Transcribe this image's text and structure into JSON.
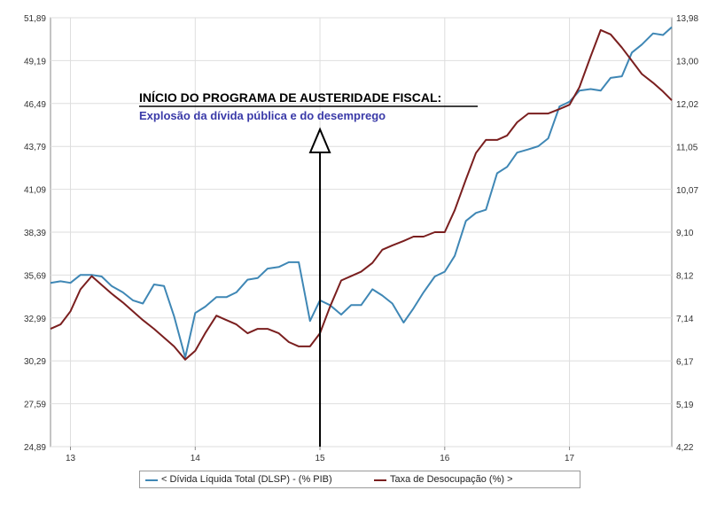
{
  "chart_data": {
    "type": "line",
    "title": "",
    "xlabel": "",
    "ylabel": "",
    "x_tick_labels": [
      "13",
      "14",
      "15",
      "16",
      "17"
    ],
    "x_ticks": [
      13,
      14,
      15,
      16,
      17
    ],
    "xlim": [
      12.84,
      17.82
    ],
    "y_left": {
      "ylim": [
        24.89,
        51.89
      ],
      "tick_labels": [
        "51,89",
        "49,19",
        "46,49",
        "43,79",
        "41,09",
        "38,39",
        "35,69",
        "32,99",
        "30,29",
        "27,59",
        "24,89"
      ],
      "ticks": [
        51.89,
        49.19,
        46.49,
        43.79,
        41.09,
        38.39,
        35.69,
        32.99,
        30.29,
        27.59,
        24.89
      ]
    },
    "y_right": {
      "ylim": [
        4.22,
        13.98
      ],
      "tick_labels": [
        "13,98",
        "13,00",
        "12,02",
        "11,05",
        "10,07",
        "9,10",
        "8,12",
        "7,14",
        "6,17",
        "5,19",
        "4,22"
      ],
      "ticks": [
        13.98,
        13.0,
        12.02,
        11.05,
        10.07,
        9.1,
        8.12,
        7.14,
        6.17,
        5.19,
        4.22
      ]
    },
    "grid": true,
    "legend_position": "bottom",
    "series": [
      {
        "name": "< Dívida Líquida Total (DLSP) - (% PIB)",
        "axis": "left",
        "color": "#3f87b5",
        "x": [
          12.84,
          12.92,
          13.0,
          13.08,
          13.17,
          13.25,
          13.33,
          13.42,
          13.5,
          13.58,
          13.67,
          13.75,
          13.83,
          13.92,
          14.0,
          14.08,
          14.17,
          14.25,
          14.33,
          14.42,
          14.5,
          14.58,
          14.67,
          14.75,
          14.83,
          14.92,
          15.0,
          15.08,
          15.17,
          15.25,
          15.33,
          15.42,
          15.5,
          15.58,
          15.67,
          15.75,
          15.83,
          15.92,
          16.0,
          16.08,
          16.17,
          16.25,
          16.33,
          16.42,
          16.5,
          16.58,
          16.67,
          16.75,
          16.83,
          16.92,
          17.0,
          17.08,
          17.17,
          17.25,
          17.33,
          17.42,
          17.5,
          17.58,
          17.67,
          17.75,
          17.82
        ],
        "values": [
          35.2,
          35.3,
          35.2,
          35.7,
          35.7,
          35.6,
          35.0,
          34.6,
          34.1,
          33.9,
          35.1,
          35.0,
          33.1,
          30.5,
          33.3,
          33.7,
          34.3,
          34.3,
          34.6,
          35.4,
          35.5,
          36.1,
          36.2,
          36.5,
          36.5,
          32.8,
          34.1,
          33.8,
          33.2,
          33.8,
          33.8,
          34.8,
          34.4,
          33.9,
          32.7,
          33.6,
          34.6,
          35.6,
          35.9,
          36.9,
          39.1,
          39.6,
          39.8,
          42.1,
          42.5,
          43.4,
          43.6,
          43.8,
          44.3,
          46.3,
          46.6,
          47.3,
          47.4,
          47.3,
          48.1,
          48.2,
          49.7,
          50.2,
          50.9,
          50.8,
          51.3
        ]
      },
      {
        "name": "Taxa de Desocupação (%) >",
        "axis": "right",
        "color": "#7a1f1f",
        "x": [
          12.84,
          12.92,
          13.0,
          13.08,
          13.17,
          13.25,
          13.33,
          13.42,
          13.5,
          13.58,
          13.67,
          13.75,
          13.83,
          13.92,
          14.0,
          14.08,
          14.17,
          14.25,
          14.33,
          14.42,
          14.5,
          14.58,
          14.67,
          14.75,
          14.83,
          14.92,
          15.0,
          15.08,
          15.17,
          15.25,
          15.33,
          15.42,
          15.5,
          15.58,
          15.67,
          15.75,
          15.83,
          15.92,
          16.0,
          16.08,
          16.17,
          16.25,
          16.33,
          16.42,
          16.5,
          16.58,
          16.67,
          16.75,
          16.83,
          16.92,
          17.0,
          17.08,
          17.17,
          17.25,
          17.33,
          17.42,
          17.5,
          17.58,
          17.67,
          17.75,
          17.82
        ],
        "values": [
          6.9,
          7.0,
          7.3,
          7.8,
          8.1,
          7.9,
          7.7,
          7.5,
          7.3,
          7.1,
          6.9,
          6.7,
          6.5,
          6.2,
          6.4,
          6.8,
          7.2,
          7.1,
          7.0,
          6.8,
          6.9,
          6.9,
          6.8,
          6.6,
          6.5,
          6.5,
          6.8,
          7.4,
          8.0,
          8.1,
          8.2,
          8.4,
          8.7,
          8.8,
          8.9,
          9.0,
          9.0,
          9.1,
          9.1,
          9.6,
          10.3,
          10.9,
          11.2,
          11.2,
          11.3,
          11.6,
          11.8,
          11.8,
          11.8,
          11.9,
          12.0,
          12.4,
          13.1,
          13.7,
          13.6,
          13.3,
          13.0,
          12.7,
          12.5,
          12.3,
          12.1
        ]
      }
    ]
  },
  "annotation": {
    "title": "INÍCIO DO PROGRAMA DE AUSTERIDADE FISCAL:",
    "subtitle": "Explosão da dívida pública e do desemprego",
    "x": 15
  },
  "legend": {
    "items": [
      {
        "label": "< Dívida Líquida Total (DLSP) - (% PIB)",
        "color": "#3f87b5"
      },
      {
        "label": "Taxa de Desocupação (%) >",
        "color": "#7a1f1f"
      }
    ]
  }
}
